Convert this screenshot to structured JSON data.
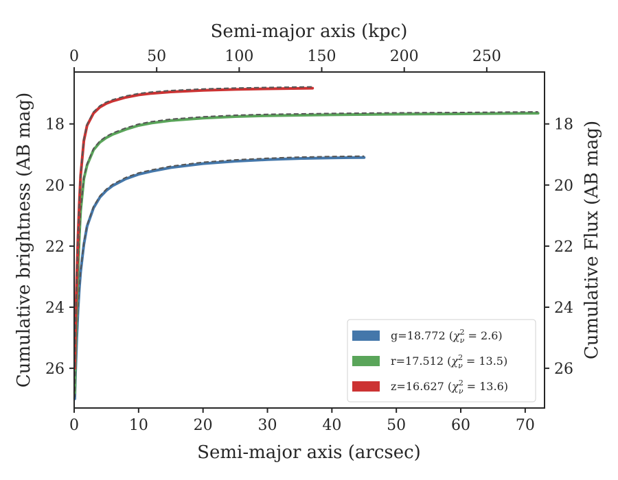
{
  "chart_data": {
    "type": "line",
    "xlabel": "Semi-major axis (arcsec)",
    "ylabel": "Cumulative brightness (AB mag)",
    "top_xlabel": "Semi-major axis (kpc)",
    "right_ylabel": "Cumulative Flux (AB mag)",
    "xlim": [
      0,
      73
    ],
    "ylim": [
      27.3,
      16.3
    ],
    "y_inverted": true,
    "top_xlim": [
      0,
      285
    ],
    "x_ticks": [
      "0",
      "10",
      "20",
      "30",
      "40",
      "50",
      "60",
      "70"
    ],
    "top_x_ticks": [
      "0",
      "50",
      "100",
      "150",
      "200",
      "250"
    ],
    "y_ticks": [
      "18",
      "20",
      "22",
      "24",
      "26"
    ],
    "grid": false,
    "legend_position": "lower-right",
    "series": [
      {
        "name": "g=18.772 (χ²ν = 2.6)",
        "label_main": "g=18.772 (",
        "label_chi": "χ",
        "label_sup": "2",
        "label_sub": "ν",
        "label_rest": " = 2.6)",
        "color": "#4477aa",
        "x": [
          0.1,
          0.2,
          0.4,
          0.6,
          0.8,
          1,
          1.5,
          2,
          3,
          4,
          5,
          6,
          8,
          10,
          12,
          15,
          20,
          25,
          30,
          35,
          40,
          45
        ],
        "y": [
          27.0,
          26.2,
          25.0,
          24.1,
          23.4,
          22.85,
          21.95,
          21.35,
          20.75,
          20.4,
          20.18,
          20.02,
          19.8,
          19.65,
          19.55,
          19.43,
          19.3,
          19.22,
          19.17,
          19.13,
          19.11,
          19.1
        ]
      },
      {
        "name": "r=17.512 (χ²ν = 13.5)",
        "label_main": "r=17.512 (",
        "label_chi": "χ",
        "label_sup": "2",
        "label_sub": "ν",
        "label_rest": " = 13.5)",
        "color": "#5aa55a",
        "x": [
          0.1,
          0.2,
          0.4,
          0.6,
          0.8,
          1,
          1.5,
          2,
          3,
          4,
          5,
          6,
          8,
          10,
          12,
          15,
          20,
          25,
          30,
          40,
          50,
          60,
          72
        ],
        "y": [
          26.8,
          25.6,
          24.0,
          22.8,
          21.7,
          20.85,
          19.8,
          19.35,
          18.85,
          18.6,
          18.45,
          18.34,
          18.18,
          18.05,
          17.97,
          17.89,
          17.81,
          17.76,
          17.73,
          17.7,
          17.68,
          17.67,
          17.65
        ]
      },
      {
        "name": "z=16.627 (χ²ν = 13.6)",
        "label_main": "z=16.627 (",
        "label_chi": "χ",
        "label_sup": "2",
        "label_sub": "ν",
        "label_rest": " = 13.6)",
        "color": "#cc3333",
        "x": [
          0.1,
          0.2,
          0.4,
          0.6,
          0.8,
          1,
          1.5,
          2,
          3,
          4,
          5,
          6,
          8,
          10,
          12,
          15,
          20,
          25,
          30,
          37
        ],
        "y": [
          26.0,
          24.7,
          23.0,
          21.7,
          20.6,
          19.7,
          18.55,
          18.05,
          17.65,
          17.45,
          17.33,
          17.25,
          17.13,
          17.05,
          17.0,
          16.95,
          16.9,
          16.87,
          16.85,
          16.83
        ]
      }
    ],
    "model_line_color": "#555555"
  }
}
